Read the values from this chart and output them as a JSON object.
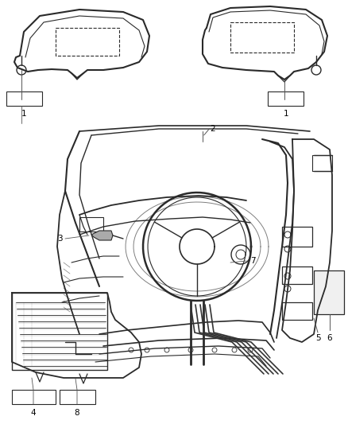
{
  "background_color": "#ffffff",
  "line_color": "#2a2a2a",
  "label_color": "#000000",
  "fig_width": 4.38,
  "fig_height": 5.33,
  "dpi": 100
}
